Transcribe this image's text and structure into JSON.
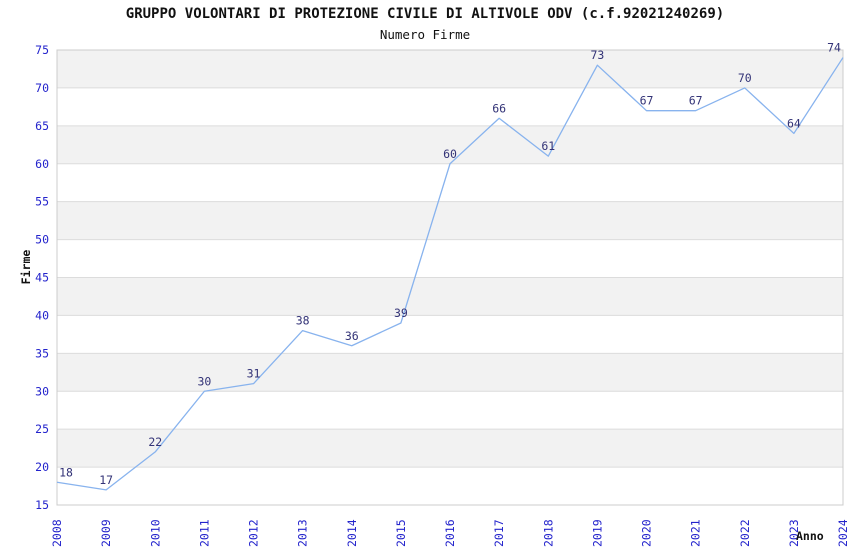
{
  "chart_data": {
    "type": "line",
    "title": "GRUPPO VOLONTARI DI PROTEZIONE CIVILE DI ALTIVOLE ODV (c.f.92021240269)",
    "subtitle": "Numero Firme",
    "xlabel": "Anno",
    "ylabel": "Firme",
    "x": [
      2008,
      2009,
      2010,
      2011,
      2012,
      2013,
      2014,
      2015,
      2016,
      2017,
      2018,
      2019,
      2020,
      2021,
      2022,
      2023,
      2024
    ],
    "values": [
      18,
      17,
      22,
      30,
      31,
      38,
      36,
      39,
      60,
      66,
      61,
      73,
      67,
      67,
      70,
      64,
      74
    ],
    "ylim": [
      15,
      75
    ],
    "ytick_step": 5,
    "grid": "horizontal-bands",
    "legend": "none",
    "colors": {
      "line": "#88b3ee",
      "tick_label": "#2323cc",
      "point_label": "#333377",
      "band_gray": "#f2f2f2",
      "band_white": "#ffffff",
      "gridline": "#dcdcdc",
      "border": "#cccccc",
      "text": "#111111"
    }
  }
}
